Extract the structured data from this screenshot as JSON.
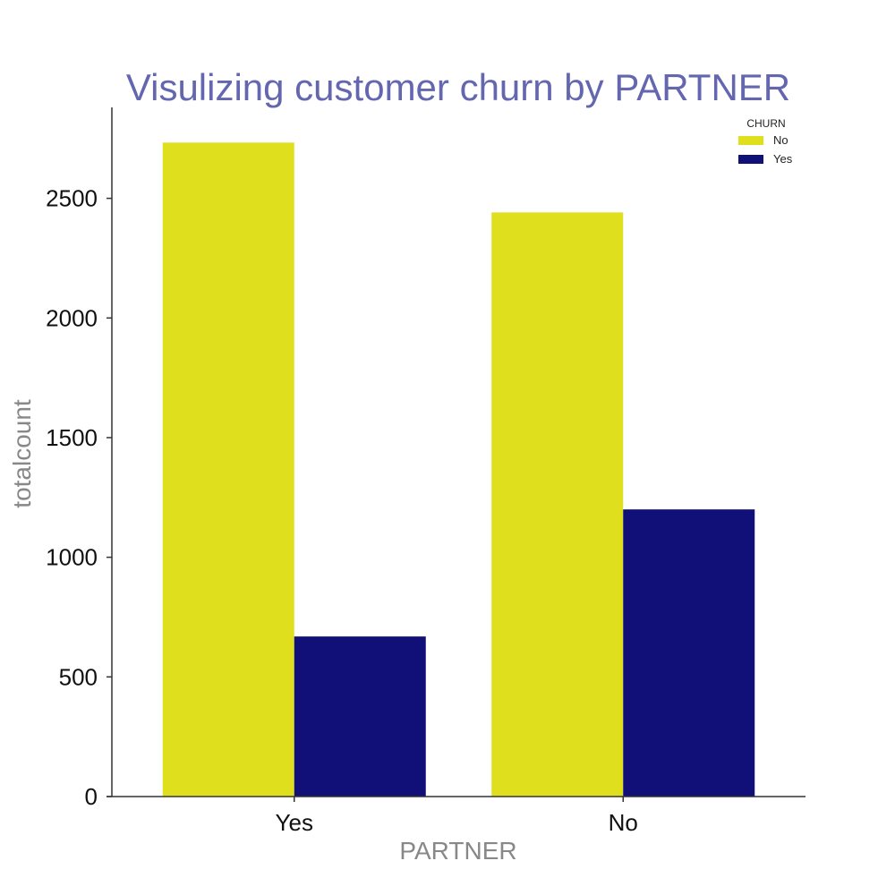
{
  "colors": {
    "title": "#6466b0",
    "axis_label": "#888888",
    "axis_line": "#333333",
    "series_no": "#dfdf1e",
    "series_yes": "#101078"
  },
  "chart_data": {
    "type": "bar",
    "title": "Visulizing customer churn by PARTNER",
    "xlabel": "PARTNER",
    "ylabel": "totalcount",
    "categories": [
      "Yes",
      "No"
    ],
    "series": [
      {
        "name": "No",
        "values": [
          2733,
          2441
        ]
      },
      {
        "name": "Yes",
        "values": [
          669,
          1200
        ]
      }
    ],
    "ylim": [
      0,
      2880
    ],
    "yticks": [
      0,
      500,
      1000,
      1500,
      2000,
      2500
    ],
    "grid": false,
    "legend": {
      "title": "CHURN",
      "position": "top-right"
    }
  }
}
